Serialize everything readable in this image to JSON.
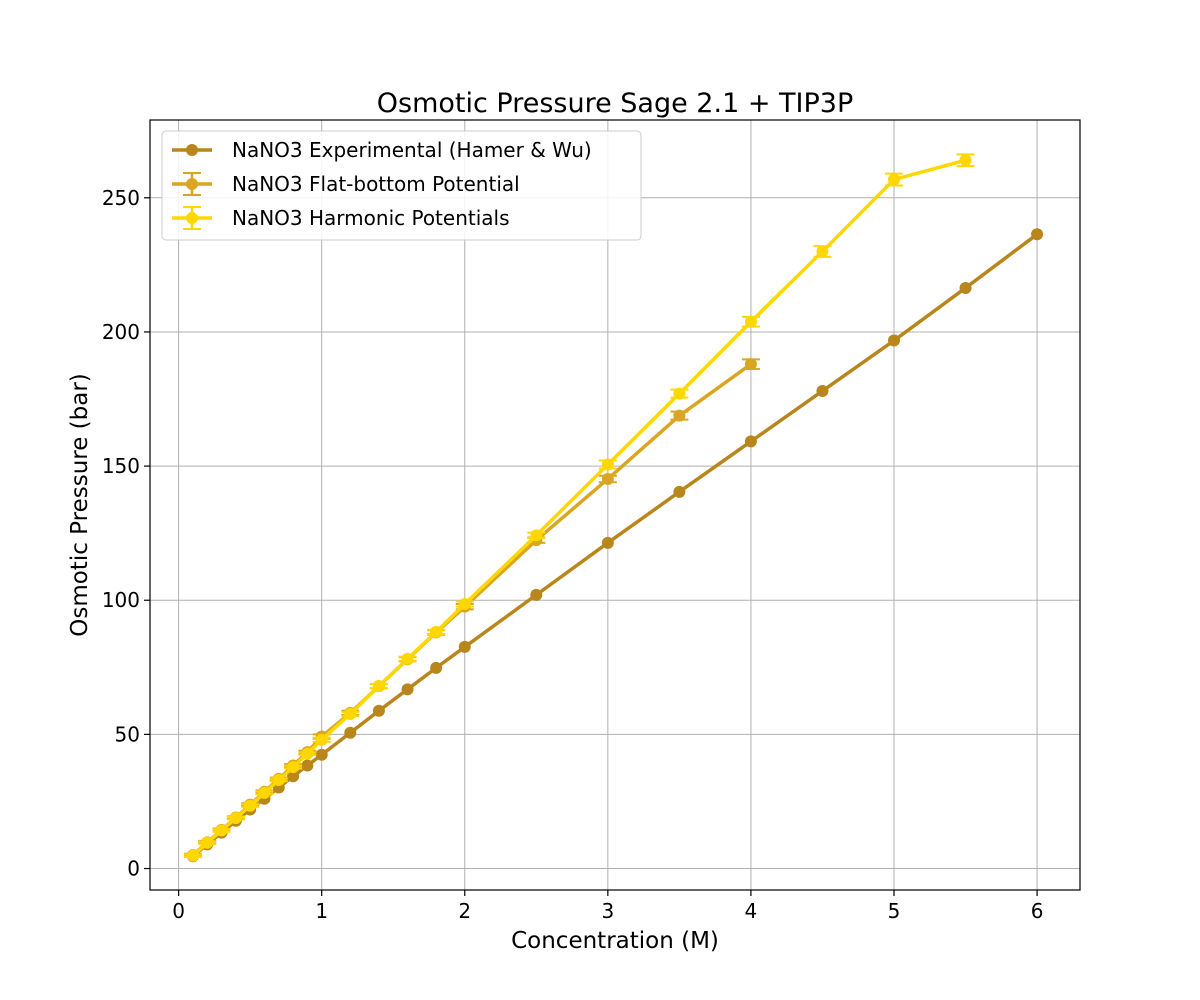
{
  "chart_data": {
    "type": "line",
    "title": "Osmotic Pressure Sage 2.1 + TIP3P",
    "xlabel": "Concentration (M)",
    "ylabel": "Osmotic Pressure (bar)",
    "xlim": [
      -0.2,
      6.3
    ],
    "ylim": [
      -8,
      279
    ],
    "xticks": [
      0,
      1,
      2,
      3,
      4,
      5,
      6
    ],
    "yticks": [
      0,
      50,
      100,
      150,
      200,
      250
    ],
    "grid": true,
    "legend_position": "top-left",
    "series": [
      {
        "name": "NaNO3 Experimental (Hamer & Wu)",
        "color": "#b8861b",
        "error_bars": false,
        "x": [
          0.1,
          0.2,
          0.3,
          0.4,
          0.5,
          0.6,
          0.7,
          0.8,
          0.9,
          1.0,
          1.2,
          1.4,
          1.6,
          1.8,
          2.0,
          2.5,
          3.0,
          3.5,
          4.0,
          4.5,
          5.0,
          5.5,
          6.0
        ],
        "y": [
          4.6,
          9.0,
          13.4,
          17.8,
          22.0,
          26.0,
          30.2,
          34.4,
          38.4,
          42.4,
          50.6,
          58.8,
          66.8,
          74.8,
          82.6,
          102.0,
          121.4,
          140.4,
          159.2,
          178.0,
          196.8,
          216.4,
          236.4
        ]
      },
      {
        "name": "NaNO3 Flat-bottom Potential",
        "color": "#daa520",
        "error_bars": true,
        "x": [
          0.1,
          0.2,
          0.3,
          0.4,
          0.5,
          0.6,
          0.7,
          0.8,
          0.9,
          1.0,
          1.2,
          1.4,
          1.6,
          1.8,
          2.0,
          2.5,
          3.0,
          3.5,
          4.0
        ],
        "y": [
          5.0,
          9.8,
          14.4,
          19.0,
          23.8,
          28.6,
          33.4,
          38.4,
          43.4,
          49.2,
          58.0,
          68.0,
          78.0,
          88.0,
          97.6,
          122.4,
          145.2,
          168.8,
          188.0
        ],
        "yerr": [
          0.5,
          0.5,
          0.5,
          0.5,
          0.5,
          0.5,
          0.5,
          0.5,
          0.5,
          0.8,
          0.8,
          0.8,
          0.8,
          0.8,
          1.0,
          1.0,
          1.2,
          1.5,
          1.8
        ]
      },
      {
        "name": "NaNO3 Harmonic Potentials",
        "color": "#ffd700",
        "error_bars": true,
        "x": [
          0.1,
          0.2,
          0.3,
          0.4,
          0.5,
          0.6,
          0.7,
          0.8,
          0.9,
          1.0,
          1.2,
          1.4,
          1.6,
          1.8,
          2.0,
          2.5,
          3.0,
          3.5,
          4.0,
          4.5,
          5.0,
          5.5
        ],
        "y": [
          4.8,
          9.6,
          14.2,
          18.8,
          23.4,
          28.2,
          33.0,
          37.8,
          42.8,
          48.0,
          57.6,
          68.0,
          78.2,
          88.2,
          98.6,
          124.2,
          150.6,
          177.0,
          203.8,
          230.0,
          256.8,
          264.0
        ],
        "yerr": [
          0.5,
          0.5,
          0.5,
          0.5,
          0.5,
          0.5,
          0.5,
          0.5,
          0.5,
          0.8,
          0.8,
          0.8,
          0.8,
          0.8,
          1.0,
          1.0,
          1.5,
          1.5,
          1.8,
          2.0,
          2.2,
          2.2
        ]
      }
    ]
  }
}
